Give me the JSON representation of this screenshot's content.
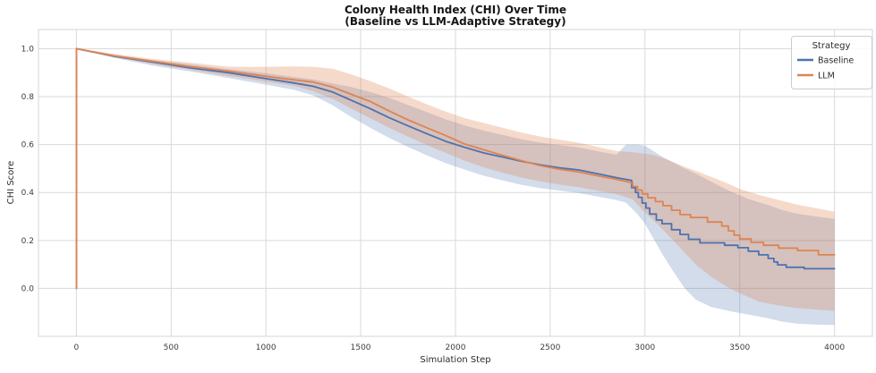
{
  "chart_data": {
    "type": "line",
    "title": "Colony Health Index (CHI) Over Time",
    "subtitle": "(Baseline vs LLM-Adaptive Strategy)",
    "xlabel": "Simulation Step",
    "ylabel": "CHI Score",
    "xlim": [
      -200,
      4200
    ],
    "ylim": [
      -0.2,
      1.08
    ],
    "grid": true,
    "grid_color": "#d9d9d9",
    "spine_color": "#d4d4d4",
    "background": "#ffffff",
    "xticks": {
      "values": [
        0,
        500,
        1000,
        1500,
        2000,
        2500,
        3000,
        3500,
        4000
      ],
      "labels": [
        "0",
        "500",
        "1000",
        "1500",
        "2000",
        "2500",
        "3000",
        "3500",
        "4000"
      ]
    },
    "yticks": {
      "values": [
        0.0,
        0.2,
        0.4,
        0.6,
        0.8,
        1.0
      ],
      "labels": [
        "0.0",
        "0.2",
        "0.4",
        "0.6",
        "0.8",
        "1.0"
      ]
    },
    "legend": {
      "title": "Strategy",
      "position": "upper right"
    },
    "series": [
      {
        "name": "Baseline",
        "color": "#4C72B0",
        "band_color": "rgba(76,114,176,0.25)",
        "line": [
          [
            0,
            0.0
          ],
          [
            0,
            1.0
          ],
          [
            200,
            0.968
          ],
          [
            400,
            0.945
          ],
          [
            600,
            0.92
          ],
          [
            800,
            0.9
          ],
          [
            1000,
            0.875
          ],
          [
            1150,
            0.857
          ],
          [
            1250,
            0.843
          ],
          [
            1350,
            0.82
          ],
          [
            1450,
            0.785
          ],
          [
            1550,
            0.75
          ],
          [
            1650,
            0.712
          ],
          [
            1750,
            0.678
          ],
          [
            1850,
            0.645
          ],
          [
            1950,
            0.613
          ],
          [
            2050,
            0.588
          ],
          [
            2150,
            0.565
          ],
          [
            2250,
            0.548
          ],
          [
            2350,
            0.53
          ],
          [
            2450,
            0.515
          ],
          [
            2550,
            0.503
          ],
          [
            2650,
            0.494
          ],
          [
            2750,
            0.478
          ],
          [
            2850,
            0.462
          ],
          [
            2930,
            0.45
          ],
          [
            2930,
            0.42
          ],
          [
            2950,
            0.42
          ],
          [
            2950,
            0.4
          ],
          [
            2965,
            0.4
          ],
          [
            2965,
            0.38
          ],
          [
            2985,
            0.38
          ],
          [
            2985,
            0.356
          ],
          [
            3005,
            0.356
          ],
          [
            3005,
            0.335
          ],
          [
            3025,
            0.335
          ],
          [
            3025,
            0.31
          ],
          [
            3060,
            0.31
          ],
          [
            3060,
            0.285
          ],
          [
            3090,
            0.285
          ],
          [
            3090,
            0.27
          ],
          [
            3140,
            0.27
          ],
          [
            3140,
            0.245
          ],
          [
            3185,
            0.245
          ],
          [
            3185,
            0.225
          ],
          [
            3230,
            0.225
          ],
          [
            3230,
            0.205
          ],
          [
            3290,
            0.205
          ],
          [
            3290,
            0.19
          ],
          [
            3420,
            0.19
          ],
          [
            3420,
            0.18
          ],
          [
            3490,
            0.18
          ],
          [
            3490,
            0.17
          ],
          [
            3545,
            0.17
          ],
          [
            3545,
            0.155
          ],
          [
            3600,
            0.155
          ],
          [
            3600,
            0.14
          ],
          [
            3650,
            0.14
          ],
          [
            3650,
            0.125
          ],
          [
            3680,
            0.125
          ],
          [
            3680,
            0.11
          ],
          [
            3700,
            0.11
          ],
          [
            3700,
            0.098
          ],
          [
            3745,
            0.098
          ],
          [
            3745,
            0.088
          ],
          [
            3840,
            0.088
          ],
          [
            3840,
            0.082
          ],
          [
            4000,
            0.082
          ]
        ],
        "band": [
          [
            15,
            1.0,
            1.0
          ],
          [
            200,
            0.962,
            0.975
          ],
          [
            400,
            0.93,
            0.952
          ],
          [
            600,
            0.905,
            0.935
          ],
          [
            800,
            0.878,
            0.915
          ],
          [
            1000,
            0.85,
            0.898
          ],
          [
            1150,
            0.828,
            0.882
          ],
          [
            1250,
            0.805,
            0.872
          ],
          [
            1350,
            0.765,
            0.855
          ],
          [
            1450,
            0.715,
            0.84
          ],
          [
            1550,
            0.67,
            0.82
          ],
          [
            1650,
            0.628,
            0.795
          ],
          [
            1750,
            0.59,
            0.765
          ],
          [
            1850,
            0.555,
            0.735
          ],
          [
            1950,
            0.522,
            0.705
          ],
          [
            2050,
            0.495,
            0.68
          ],
          [
            2150,
            0.47,
            0.658
          ],
          [
            2250,
            0.45,
            0.64
          ],
          [
            2350,
            0.432,
            0.622
          ],
          [
            2450,
            0.418,
            0.608
          ],
          [
            2550,
            0.408,
            0.598
          ],
          [
            2650,
            0.398,
            0.588
          ],
          [
            2750,
            0.383,
            0.572
          ],
          [
            2850,
            0.368,
            0.558
          ],
          [
            2900,
            0.358,
            0.6
          ],
          [
            2960,
            0.31,
            0.6
          ],
          [
            3000,
            0.27,
            0.595
          ],
          [
            3040,
            0.215,
            0.575
          ],
          [
            3090,
            0.145,
            0.55
          ],
          [
            3150,
            0.07,
            0.525
          ],
          [
            3210,
            0.0,
            0.5
          ],
          [
            3270,
            -0.048,
            0.478
          ],
          [
            3350,
            -0.078,
            0.445
          ],
          [
            3450,
            -0.095,
            0.405
          ],
          [
            3550,
            -0.11,
            0.372
          ],
          [
            3650,
            -0.125,
            0.348
          ],
          [
            3720,
            -0.138,
            0.328
          ],
          [
            3800,
            -0.147,
            0.312
          ],
          [
            3900,
            -0.151,
            0.3
          ],
          [
            4000,
            -0.153,
            0.29
          ]
        ]
      },
      {
        "name": "LLM",
        "color": "#DD8452",
        "band_color": "rgba(221,132,82,0.30)",
        "line": [
          [
            0,
            0.0
          ],
          [
            0,
            1.0
          ],
          [
            200,
            0.97
          ],
          [
            400,
            0.948
          ],
          [
            600,
            0.925
          ],
          [
            800,
            0.907
          ],
          [
            1000,
            0.885
          ],
          [
            1150,
            0.87
          ],
          [
            1250,
            0.861
          ],
          [
            1350,
            0.84
          ],
          [
            1450,
            0.81
          ],
          [
            1550,
            0.78
          ],
          [
            1650,
            0.74
          ],
          [
            1750,
            0.703
          ],
          [
            1850,
            0.67
          ],
          [
            1950,
            0.637
          ],
          [
            2050,
            0.602
          ],
          [
            2150,
            0.578
          ],
          [
            2250,
            0.555
          ],
          [
            2350,
            0.532
          ],
          [
            2450,
            0.512
          ],
          [
            2550,
            0.497
          ],
          [
            2650,
            0.486
          ],
          [
            2750,
            0.47
          ],
          [
            2850,
            0.455
          ],
          [
            2935,
            0.44
          ],
          [
            2935,
            0.425
          ],
          [
            2960,
            0.425
          ],
          [
            2960,
            0.41
          ],
          [
            2985,
            0.41
          ],
          [
            2985,
            0.394
          ],
          [
            3015,
            0.394
          ],
          [
            3015,
            0.378
          ],
          [
            3055,
            0.378
          ],
          [
            3055,
            0.362
          ],
          [
            3095,
            0.362
          ],
          [
            3095,
            0.345
          ],
          [
            3140,
            0.345
          ],
          [
            3140,
            0.326
          ],
          [
            3185,
            0.326
          ],
          [
            3185,
            0.308
          ],
          [
            3240,
            0.308
          ],
          [
            3240,
            0.296
          ],
          [
            3330,
            0.296
          ],
          [
            3330,
            0.277
          ],
          [
            3405,
            0.277
          ],
          [
            3405,
            0.26
          ],
          [
            3440,
            0.26
          ],
          [
            3440,
            0.24
          ],
          [
            3470,
            0.24
          ],
          [
            3470,
            0.222
          ],
          [
            3500,
            0.222
          ],
          [
            3500,
            0.206
          ],
          [
            3560,
            0.206
          ],
          [
            3560,
            0.192
          ],
          [
            3625,
            0.192
          ],
          [
            3625,
            0.18
          ],
          [
            3705,
            0.18
          ],
          [
            3705,
            0.168
          ],
          [
            3805,
            0.168
          ],
          [
            3805,
            0.158
          ],
          [
            3915,
            0.158
          ],
          [
            3915,
            0.14
          ],
          [
            4000,
            0.14
          ]
        ],
        "band": [
          [
            15,
            1.0,
            1.0
          ],
          [
            200,
            0.965,
            0.978
          ],
          [
            400,
            0.936,
            0.958
          ],
          [
            600,
            0.912,
            0.942
          ],
          [
            800,
            0.886,
            0.925
          ],
          [
            900,
            0.875,
            0.924
          ],
          [
            1000,
            0.862,
            0.924
          ],
          [
            1150,
            0.845,
            0.926
          ],
          [
            1250,
            0.822,
            0.924
          ],
          [
            1355,
            0.79,
            0.916
          ],
          [
            1450,
            0.75,
            0.893
          ],
          [
            1550,
            0.71,
            0.865
          ],
          [
            1650,
            0.67,
            0.835
          ],
          [
            1750,
            0.633,
            0.8
          ],
          [
            1850,
            0.598,
            0.768
          ],
          [
            1950,
            0.565,
            0.737
          ],
          [
            2050,
            0.532,
            0.71
          ],
          [
            2150,
            0.505,
            0.69
          ],
          [
            2250,
            0.482,
            0.67
          ],
          [
            2350,
            0.462,
            0.65
          ],
          [
            2450,
            0.446,
            0.633
          ],
          [
            2550,
            0.433,
            0.62
          ],
          [
            2650,
            0.422,
            0.608
          ],
          [
            2750,
            0.408,
            0.59
          ],
          [
            2850,
            0.393,
            0.573
          ],
          [
            2935,
            0.372,
            0.568
          ],
          [
            2985,
            0.328,
            0.563
          ],
          [
            3040,
            0.288,
            0.558
          ],
          [
            3090,
            0.248,
            0.545
          ],
          [
            3140,
            0.208,
            0.53
          ],
          [
            3200,
            0.158,
            0.51
          ],
          [
            3270,
            0.098,
            0.49
          ],
          [
            3350,
            0.048,
            0.465
          ],
          [
            3430,
            0.008,
            0.44
          ],
          [
            3500,
            -0.02,
            0.415
          ],
          [
            3600,
            -0.055,
            0.39
          ],
          [
            3700,
            -0.07,
            0.37
          ],
          [
            3800,
            -0.082,
            0.35
          ],
          [
            3900,
            -0.088,
            0.335
          ],
          [
            4000,
            -0.094,
            0.32
          ]
        ]
      }
    ]
  }
}
